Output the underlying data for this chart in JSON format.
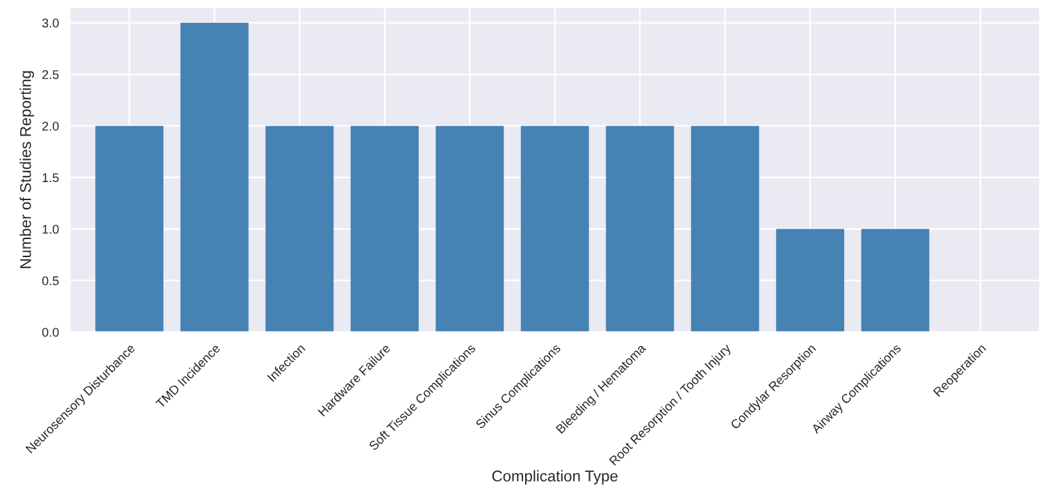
{
  "chart_data": {
    "type": "bar",
    "xlabel": "Complication Type",
    "ylabel": "Number of Studies Reporting",
    "categories": [
      "Neurosensory Disturbance",
      "TMD Incidence",
      "Infection",
      "Hardware Failure",
      "Soft Tissue Complications",
      "Sinus Complications",
      "Bleeding / Hematoma",
      "Root Resorption / Tooth Injury",
      "Condylar Resorption",
      "Airway Complications",
      "Reoperation"
    ],
    "values": [
      2,
      3,
      2,
      2,
      2,
      2,
      2,
      2,
      1,
      1,
      0
    ],
    "color": "#4682b4",
    "ylim": [
      0,
      3.15
    ],
    "yticks": [
      {
        "value": 0,
        "label": "0.0"
      },
      {
        "value": 0.5,
        "label": "0.5"
      },
      {
        "value": 1,
        "label": "1.0"
      },
      {
        "value": 1.5,
        "label": "1.5"
      },
      {
        "value": 2,
        "label": "2.0"
      },
      {
        "value": 2.5,
        "label": "2.5"
      },
      {
        "value": 3,
        "label": "3.0"
      }
    ],
    "grid": true
  }
}
